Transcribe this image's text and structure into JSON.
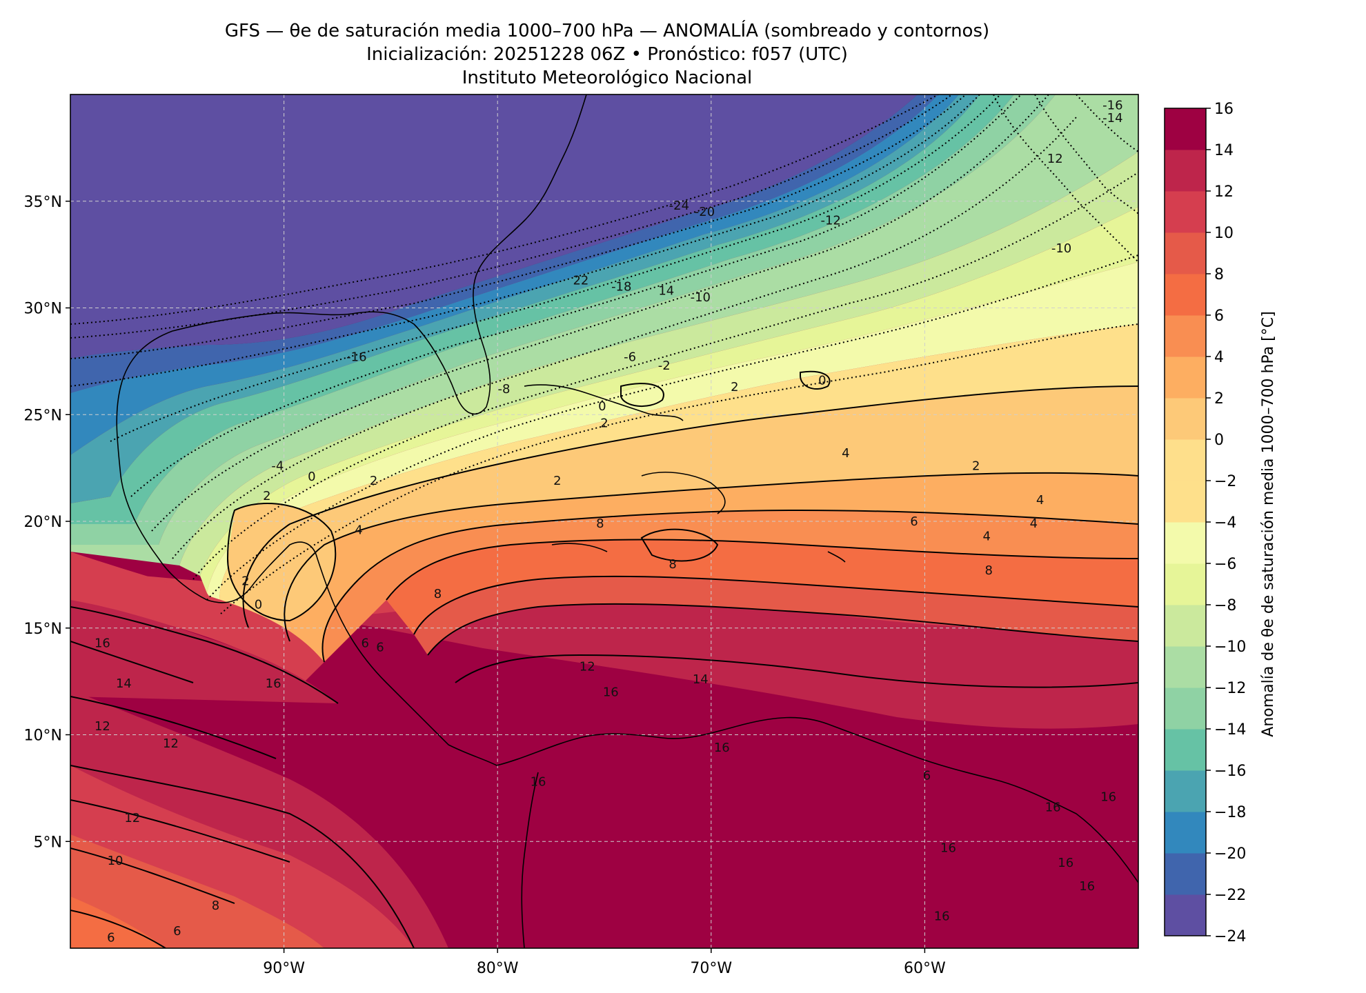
{
  "title": {
    "line1": "GFS — θe de saturación media 1000–700 hPa — ANOMALÍA (sombreado y contornos)",
    "line2": "Inicialización: 20251228 06Z   •   Pronóstico: f057 (UTC)",
    "line3": "Instituto Meteorológico Nacional"
  },
  "map": {
    "lon_range": [
      -100,
      -50
    ],
    "lat_range": [
      0,
      40
    ],
    "gridlines": true,
    "lon_ticks": [
      {
        "value": -90,
        "label": "90°W"
      },
      {
        "value": -80,
        "label": "80°W"
      },
      {
        "value": -70,
        "label": "70°W"
      },
      {
        "value": -60,
        "label": "60°W"
      }
    ],
    "lat_ticks": [
      {
        "value": 35,
        "label": "35°N"
      },
      {
        "value": 30,
        "label": "30°N"
      },
      {
        "value": 25,
        "label": "25°N"
      },
      {
        "value": 20,
        "label": "20°N"
      },
      {
        "value": 15,
        "label": "15°N"
      },
      {
        "value": 10,
        "label": "10°N"
      },
      {
        "value": 5,
        "label": "5°N"
      }
    ]
  },
  "colorbar": {
    "label": "Anomalía de θe de saturación media 1000–700 hPa [°C]",
    "levels": [
      -24,
      -22,
      -20,
      -18,
      -16,
      -14,
      -12,
      -10,
      -8,
      -6,
      -4,
      -2,
      0,
      2,
      4,
      6,
      8,
      10,
      12,
      14,
      16
    ],
    "tick_labels": [
      "−24",
      "−22",
      "−20",
      "−18",
      "−16",
      "−14",
      "−12",
      "−10",
      "−8",
      "−6",
      "−4",
      "−2",
      "0",
      "2",
      "4",
      "6",
      "8",
      "10",
      "12",
      "14",
      "16"
    ],
    "colors": [
      "#5e4fa2",
      "#4065ad",
      "#3288bd",
      "#4ba4b1",
      "#66c2a5",
      "#8fd2a4",
      "#abdda4",
      "#cbe99d",
      "#e6f598",
      "#f3faab",
      "#fee08b",
      "#fedf8b",
      "#fdc978",
      "#fdae61",
      "#f98e52",
      "#f46d43",
      "#e55a49",
      "#d53e4f",
      "#be254b",
      "#9e0142"
    ]
  },
  "contour_labels": [
    {
      "text": "-24",
      "lon": -71.5,
      "lat": 34.8
    },
    {
      "text": "-20",
      "lon": -70.3,
      "lat": 34.5
    },
    {
      "text": "-12",
      "lon": -64.4,
      "lat": 34.1
    },
    {
      "text": "-16",
      "lon": -51.2,
      "lat": 39.5
    },
    {
      "text": "-14",
      "lon": -51.2,
      "lat": 38.9
    },
    {
      "text": "12",
      "lon": -53.9,
      "lat": 37.0
    },
    {
      "text": "-10",
      "lon": -53.6,
      "lat": 32.8
    },
    {
      "text": "22",
      "lon": -76.1,
      "lat": 31.3
    },
    {
      "text": "-18",
      "lon": -74.2,
      "lat": 31.0
    },
    {
      "text": "14",
      "lon": -72.1,
      "lat": 30.8
    },
    {
      "text": "-10",
      "lon": -70.5,
      "lat": 30.5
    },
    {
      "text": "-16",
      "lon": -86.6,
      "lat": 27.7
    },
    {
      "text": "-6",
      "lon": -73.8,
      "lat": 27.7
    },
    {
      "text": "-2",
      "lon": -72.2,
      "lat": 27.3
    },
    {
      "text": "-8",
      "lon": -79.7,
      "lat": 26.2
    },
    {
      "text": "2",
      "lon": -68.9,
      "lat": 26.3
    },
    {
      "text": "0",
      "lon": -64.8,
      "lat": 26.6
    },
    {
      "text": "0",
      "lon": -75.1,
      "lat": 25.4
    },
    {
      "text": "2",
      "lon": -75.0,
      "lat": 24.6
    },
    {
      "text": "4",
      "lon": -63.7,
      "lat": 23.2
    },
    {
      "text": "-4",
      "lon": -90.3,
      "lat": 22.6
    },
    {
      "text": "0",
      "lon": -88.7,
      "lat": 22.1
    },
    {
      "text": "2",
      "lon": -85.8,
      "lat": 21.9
    },
    {
      "text": "2",
      "lon": -77.2,
      "lat": 21.9
    },
    {
      "text": "2",
      "lon": -57.6,
      "lat": 22.6
    },
    {
      "text": "2",
      "lon": -90.8,
      "lat": 21.2
    },
    {
      "text": "4",
      "lon": -54.6,
      "lat": 21.0
    },
    {
      "text": "6",
      "lon": -60.5,
      "lat": 20.0
    },
    {
      "text": "4",
      "lon": -54.9,
      "lat": 19.9
    },
    {
      "text": "4",
      "lon": -86.5,
      "lat": 19.6
    },
    {
      "text": "8",
      "lon": -75.2,
      "lat": 19.9
    },
    {
      "text": "4",
      "lon": -57.1,
      "lat": 19.3
    },
    {
      "text": "8",
      "lon": -57.0,
      "lat": 17.7
    },
    {
      "text": "8",
      "lon": -71.8,
      "lat": 18.0
    },
    {
      "text": "2",
      "lon": -91.8,
      "lat": 17.2
    },
    {
      "text": "0",
      "lon": -91.2,
      "lat": 16.1
    },
    {
      "text": "8",
      "lon": -82.8,
      "lat": 16.6
    },
    {
      "text": "6",
      "lon": -86.2,
      "lat": 14.3
    },
    {
      "text": "6",
      "lon": -85.5,
      "lat": 14.1
    },
    {
      "text": "16",
      "lon": -98.5,
      "lat": 14.3
    },
    {
      "text": "12",
      "lon": -75.8,
      "lat": 13.2
    },
    {
      "text": "16",
      "lon": -90.5,
      "lat": 12.4
    },
    {
      "text": "14",
      "lon": -70.5,
      "lat": 12.6
    },
    {
      "text": "14",
      "lon": -97.5,
      "lat": 12.4
    },
    {
      "text": "16",
      "lon": -74.7,
      "lat": 12.0
    },
    {
      "text": "12",
      "lon": -98.5,
      "lat": 10.4
    },
    {
      "text": "12",
      "lon": -95.3,
      "lat": 9.6
    },
    {
      "text": "16",
      "lon": -69.5,
      "lat": 9.4
    },
    {
      "text": "16",
      "lon": -78.1,
      "lat": 7.8
    },
    {
      "text": "6",
      "lon": -59.9,
      "lat": 8.1
    },
    {
      "text": "16",
      "lon": -51.4,
      "lat": 7.1
    },
    {
      "text": "16",
      "lon": -54.0,
      "lat": 6.6
    },
    {
      "text": "12",
      "lon": -97.1,
      "lat": 6.1
    },
    {
      "text": "16",
      "lon": -58.9,
      "lat": 4.7
    },
    {
      "text": "10",
      "lon": -97.9,
      "lat": 4.1
    },
    {
      "text": "16",
      "lon": -53.4,
      "lat": 4.0
    },
    {
      "text": "8",
      "lon": -93.2,
      "lat": 2.0
    },
    {
      "text": "16",
      "lon": -52.4,
      "lat": 2.9
    },
    {
      "text": "16",
      "lon": -59.2,
      "lat": 1.5
    },
    {
      "text": "6",
      "lon": -95.0,
      "lat": 0.8
    },
    {
      "text": "6",
      "lon": -98.1,
      "lat": 0.5
    }
  ]
}
